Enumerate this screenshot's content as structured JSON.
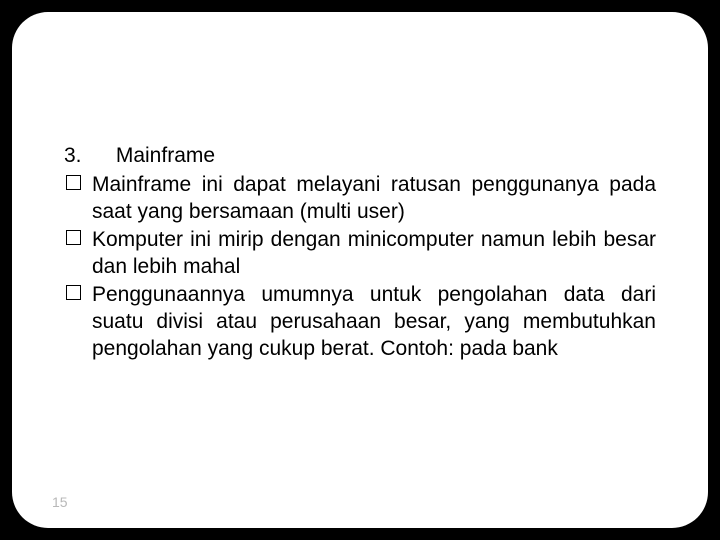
{
  "slide": {
    "heading_number": "3.",
    "heading_title": "Mainframe",
    "bullets": [
      "Mainframe ini dapat melayani ratusan penggunanya pada saat yang bersamaan (multi user)",
      "Komputer ini mirip dengan minicomputer namun lebih besar dan lebih mahal",
      "Penggunaannya umumnya untuk pengolahan data dari suatu divisi atau perusahaan besar, yang membutuhkan pengolahan yang cukup berat. Contoh: pada bank"
    ],
    "page_number": "15"
  },
  "style": {
    "background_color": "#000000",
    "slide_background": "#ffffff",
    "text_color": "#000000",
    "page_number_color": "#b8b8b8",
    "font_family": "Arial",
    "body_fontsize": 21,
    "slide_border_radius": 36
  }
}
